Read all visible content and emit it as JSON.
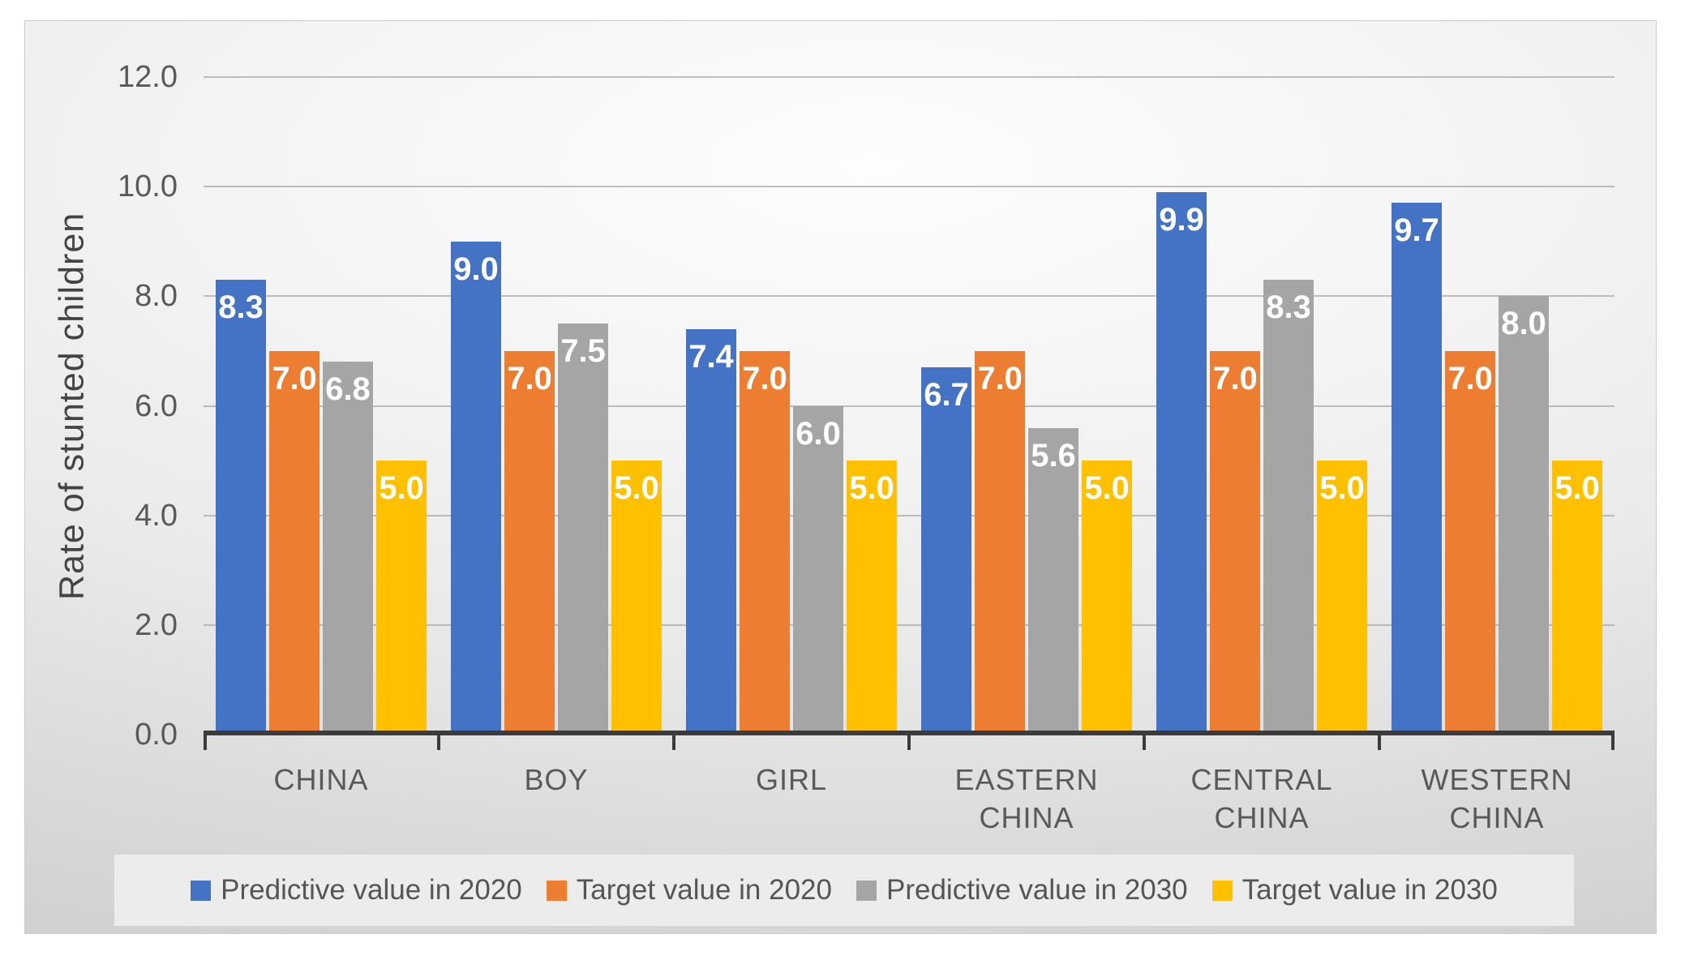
{
  "chart_data": {
    "type": "bar",
    "title": "",
    "xlabel": "",
    "ylabel": "Rate of stunted children",
    "ylim": [
      0,
      12
    ],
    "y_tick_step": 2,
    "y_ticks": [
      "12.0",
      "10.0",
      "8.0",
      "6.0",
      "4.0",
      "2.0",
      "0.0"
    ],
    "grid": true,
    "legend_position": "bottom",
    "data_label_decimals": 1,
    "data_label_color": "#ffffff",
    "categories": [
      "CHINA",
      "BOY",
      "GIRL",
      "EASTERN\nCHINA",
      "CENTRAL\nCHINA",
      "WESTERN\nCHINA"
    ],
    "series": [
      {
        "name": "Predictive value in 2020",
        "color": "#4472C4",
        "values": [
          8.3,
          9.0,
          7.4,
          6.7,
          9.9,
          9.7
        ]
      },
      {
        "name": "Target value in 2020",
        "color": "#ED7D31",
        "values": [
          7.0,
          7.0,
          7.0,
          7.0,
          7.0,
          7.0
        ]
      },
      {
        "name": "Predictive value in 2030",
        "color": "#A5A5A5",
        "values": [
          6.8,
          7.5,
          6.0,
          5.6,
          8.3,
          8.0
        ]
      },
      {
        "name": "Target value in 2030",
        "color": "#FFC000",
        "values": [
          5.0,
          5.0,
          5.0,
          5.0,
          5.0,
          5.0
        ]
      }
    ]
  }
}
